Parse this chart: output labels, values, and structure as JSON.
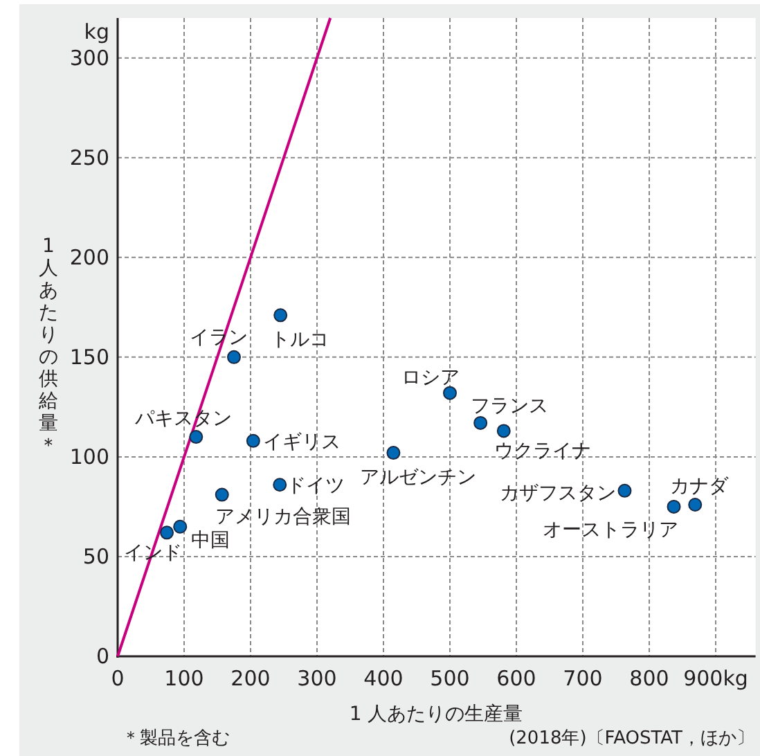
{
  "chart_data": {
    "type": "scatter",
    "xlabel": "1 人あたりの生産量",
    "ylabel": "1人あたりの供給量＊",
    "xlim": [
      0,
      960
    ],
    "ylim": [
      0,
      320
    ],
    "xticks": [
      0,
      100,
      200,
      300,
      400,
      500,
      600,
      700,
      800,
      {
        "value": 900,
        "label": "900kg"
      }
    ],
    "yticks": [
      0,
      50,
      100,
      150,
      200,
      250,
      300
    ],
    "grid": true,
    "marker": "circle",
    "series": [
      {
        "type": "line",
        "color": "#c8007f",
        "marker": "none",
        "line_style": "solid",
        "x": [
          0,
          320
        ],
        "values": [
          0,
          320
        ]
      },
      {
        "color": "#0068b4",
        "x": [
          175,
          245,
          118,
          204,
          244,
          157,
          74,
          94,
          415,
          500,
          546,
          581,
          763,
          837,
          869
        ],
        "values": [
          150,
          171,
          110,
          108,
          86,
          81,
          62,
          65,
          102,
          132,
          117,
          113,
          83,
          75,
          76
        ]
      }
    ],
    "annotations": [
      "kg",
      {
        "text": "イラン",
        "x": 175,
        "y": 150
      },
      {
        "text": "トルコ",
        "x": 245,
        "y": 171
      },
      {
        "text": "パキスタン",
        "x": 118,
        "y": 110
      },
      {
        "text": "イギリス",
        "x": 204,
        "y": 108
      },
      {
        "text": "ドイツ",
        "x": 244,
        "y": 86
      },
      {
        "text": "アメリカ合衆国",
        "x": 157,
        "y": 81
      },
      {
        "text": "インド",
        "x": 74,
        "y": 62
      },
      {
        "text": "中国",
        "x": 94,
        "y": 65
      },
      {
        "text": "アルゼンチン",
        "x": 415,
        "y": 102
      },
      {
        "text": "ロシア",
        "x": 500,
        "y": 132
      },
      {
        "text": "フランス",
        "x": 546,
        "y": 117
      },
      {
        "text": "ウクライナ",
        "x": 581,
        "y": 113
      },
      {
        "text": "カザフスタン",
        "x": 763,
        "y": 83
      },
      {
        "text": "オーストラリア",
        "x": 837,
        "y": 75
      },
      {
        "text": "カナダ",
        "x": 869,
        "y": 76
      },
      "＊製品を含む",
      "(2018年)〔FAOSTAT，ほか〕"
    ]
  }
}
